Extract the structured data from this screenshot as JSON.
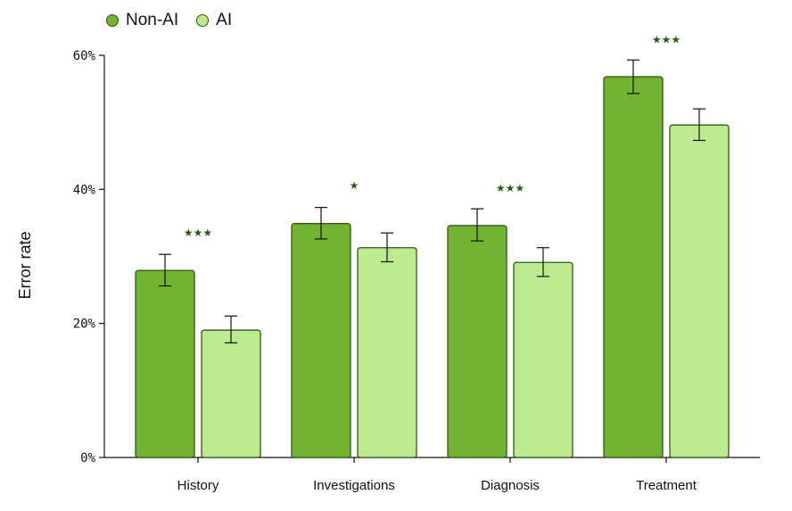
{
  "chart_data": {
    "type": "bar",
    "title": "",
    "xlabel": "",
    "ylabel": "Error rate",
    "ylim": [
      0,
      60
    ],
    "yticks": [
      0,
      20,
      40,
      60
    ],
    "ytick_labels": [
      "0%",
      "20%",
      "40%",
      "60%"
    ],
    "grid": false,
    "legend_position": "top-left",
    "categories": [
      "History",
      "Investigations",
      "Diagnosis",
      "Treatment"
    ],
    "series": [
      {
        "name": "Non-AI",
        "color": "#72b334",
        "values": [
          27.9,
          34.9,
          34.6,
          56.8
        ],
        "error_low": [
          25.6,
          32.6,
          32.3,
          54.3
        ],
        "error_high": [
          30.3,
          37.3,
          37.1,
          59.3
        ]
      },
      {
        "name": "AI",
        "color": "#bde991",
        "values": [
          19.0,
          31.3,
          29.1,
          49.6
        ],
        "error_low": [
          17.1,
          29.2,
          27.0,
          47.3
        ],
        "error_high": [
          21.1,
          33.5,
          31.3,
          52.0
        ]
      }
    ],
    "significance": [
      "★★★",
      "★",
      "★★★",
      "★★★"
    ],
    "significance_y": [
      33.5,
      40.6,
      40.2,
      62.3
    ],
    "edge_color": "#2d5a12"
  }
}
